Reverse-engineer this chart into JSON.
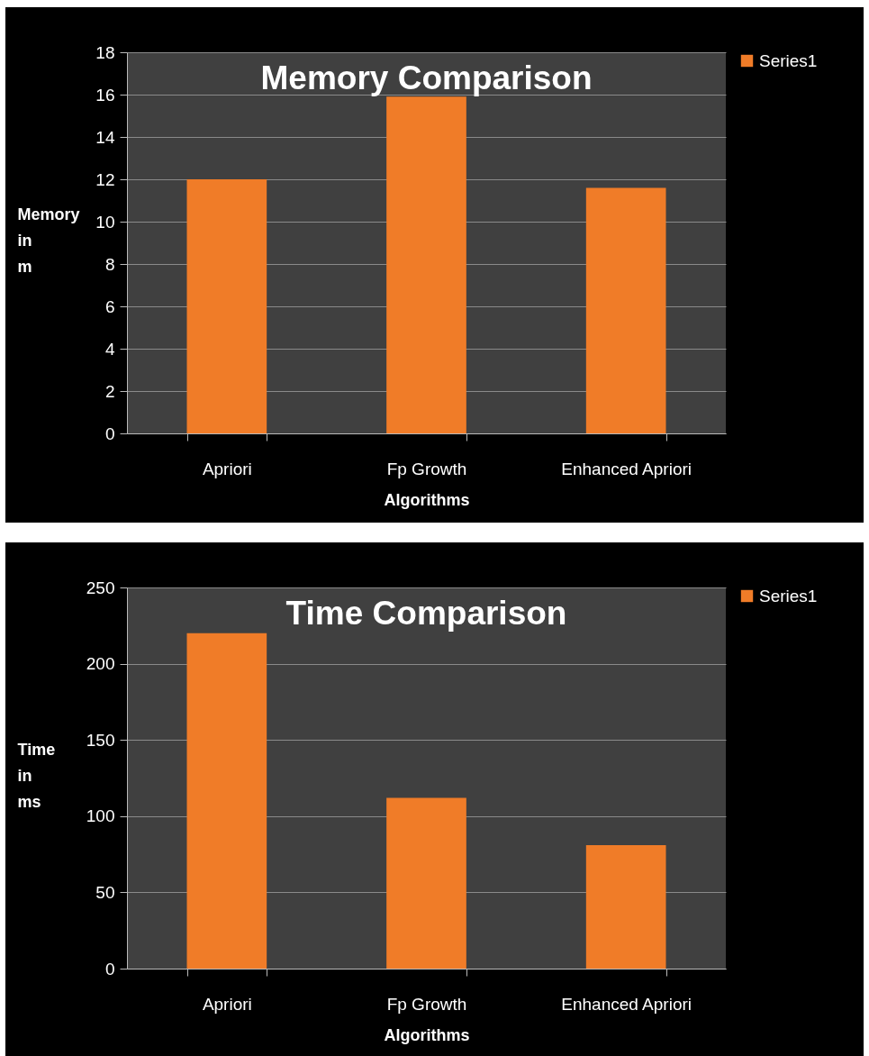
{
  "chart_data": [
    {
      "type": "bar",
      "title": "Memory  Comparison",
      "xlabel": "Algorithms",
      "ylabel": "Memory in m",
      "categories": [
        "Apriori",
        "Fp Growth",
        "Enhanced Apriori"
      ],
      "series": [
        {
          "name": "Series1",
          "color": "#f07c28",
          "values": [
            12,
            15.9,
            11.6
          ]
        }
      ],
      "ylim": [
        0,
        18
      ],
      "yticks": [
        0,
        2,
        4,
        6,
        8,
        10,
        12,
        14,
        16,
        18
      ],
      "grid": "y",
      "legend": "right"
    },
    {
      "type": "bar",
      "title": "Time Comparison",
      "xlabel": "Algorithms",
      "ylabel": "Time in ms",
      "categories": [
        "Apriori",
        "Fp Growth",
        "Enhanced Apriori"
      ],
      "series": [
        {
          "name": "Series1",
          "color": "#f07c28",
          "values": [
            220,
            112,
            81
          ]
        }
      ],
      "ylim": [
        0,
        250
      ],
      "yticks": [
        0,
        50,
        100,
        150,
        200,
        250
      ],
      "grid": "y",
      "legend": "right"
    }
  ]
}
